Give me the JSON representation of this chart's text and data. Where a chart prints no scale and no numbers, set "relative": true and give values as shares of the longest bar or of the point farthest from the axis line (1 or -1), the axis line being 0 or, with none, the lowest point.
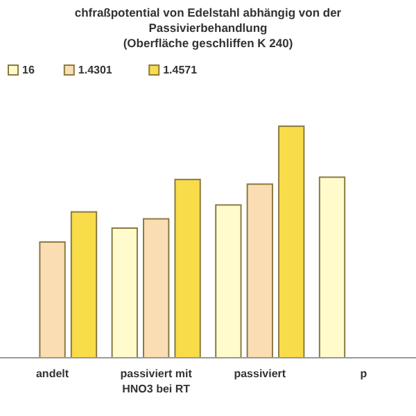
{
  "chart_data": {
    "type": "bar",
    "title": "chfraßpotential von Edelstahl abhängig von der Passivierbehandlung",
    "subtitle": "(Oberfläche geschliffen K 240)",
    "relative": true,
    "legend": "top left",
    "categories": [
      "andelt",
      "passiviert mit HNO3 bei RT",
      "passiviert",
      "p"
    ],
    "series": [
      {
        "name": "16",
        "color": "#fffbcc",
        "values": [
          null,
          0.56,
          0.66,
          0.78
        ]
      },
      {
        "name": "1.4301",
        "color": "#fbddb3",
        "values": [
          0.5,
          0.6,
          0.75,
          null
        ]
      },
      {
        "name": "1.4571",
        "color": "#f9dc4a",
        "values": [
          0.63,
          0.77,
          1,
          null
        ]
      }
    ]
  }
}
